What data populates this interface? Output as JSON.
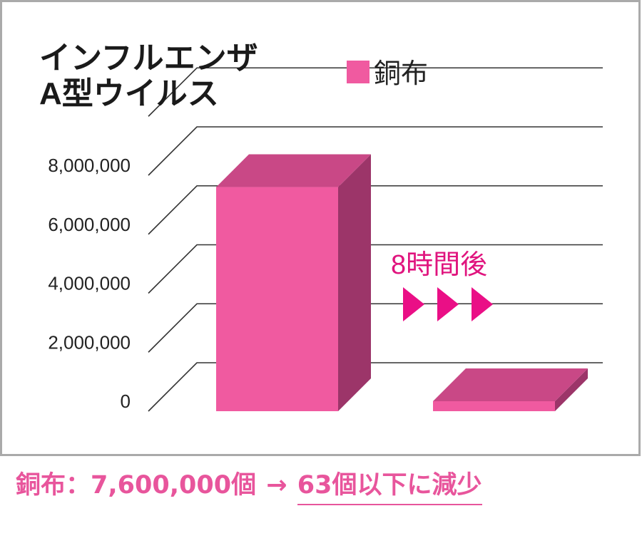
{
  "chart_data": {
    "type": "bar",
    "title_lines": [
      "インフルエンザ",
      "A型ウイルス"
    ],
    "categories": [
      "",
      ""
    ],
    "series": [
      {
        "name": "銅布",
        "values": [
          7600000,
          63
        ]
      }
    ],
    "yticks": [
      "8,000,000",
      "6,000,000",
      "4,000,000",
      "2,000,000",
      "0"
    ],
    "ylim": [
      0,
      8000000
    ],
    "grid": true,
    "legend": "top-right",
    "annotation": "8時間後",
    "colors": {
      "front": "#f05aa0",
      "top": "#c94886",
      "side": "#9c3569",
      "grid": "#333333",
      "frame": "#aaaaaa"
    }
  },
  "caption": {
    "label": "銅布：7,600,000個",
    "arrow": "→",
    "result": "63個以下に減少"
  }
}
